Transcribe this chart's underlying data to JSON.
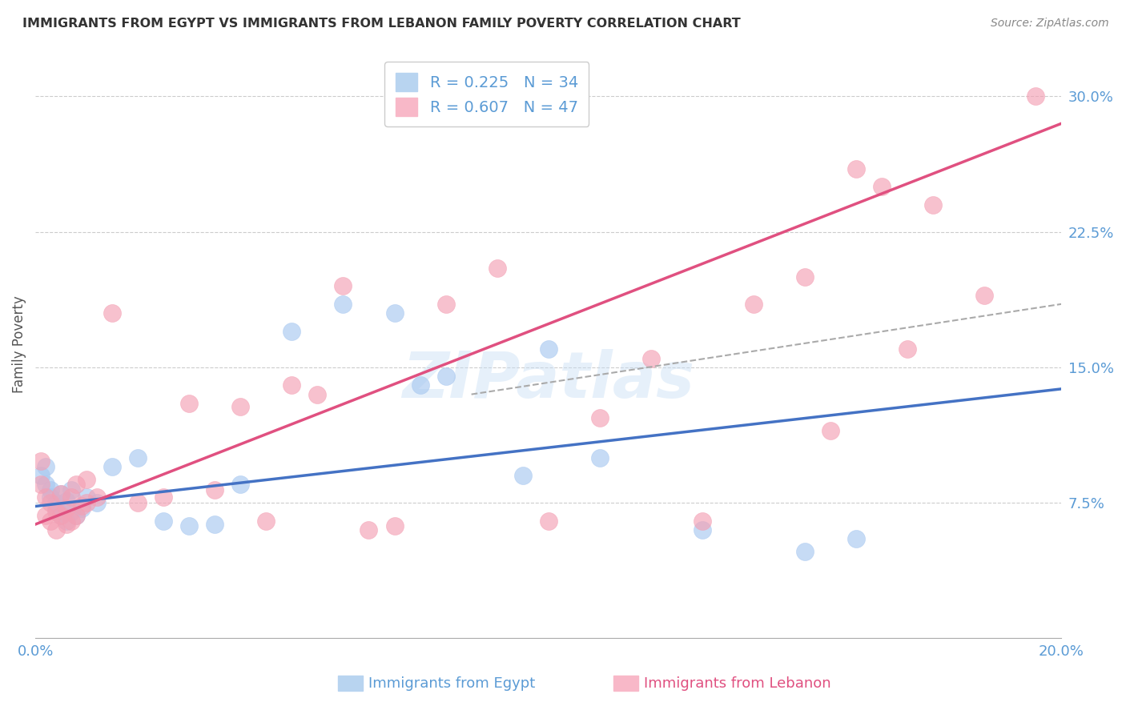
{
  "title": "IMMIGRANTS FROM EGYPT VS IMMIGRANTS FROM LEBANON FAMILY POVERTY CORRELATION CHART",
  "source": "Source: ZipAtlas.com",
  "ylabel": "Family Poverty",
  "x_label_egypt": "Immigrants from Egypt",
  "x_label_lebanon": "Immigrants from Lebanon",
  "legend_egypt_r": "R = 0.225",
  "legend_egypt_n": "N = 34",
  "legend_lebanon_r": "R = 0.607",
  "legend_lebanon_n": "N = 47",
  "watermark": "ZIPatlas",
  "xlim": [
    0.0,
    0.2
  ],
  "ylim": [
    0.0,
    0.325
  ],
  "xtick_positions": [
    0.0,
    0.05,
    0.1,
    0.15,
    0.2
  ],
  "xtick_labels": [
    "0.0%",
    "",
    "",
    "",
    "20.0%"
  ],
  "ytick_positions": [
    0.075,
    0.15,
    0.225,
    0.3
  ],
  "ytick_labels": [
    "7.5%",
    "15.0%",
    "22.5%",
    "30.0%"
  ],
  "color_egypt": "#a8c8f0",
  "color_lebanon": "#f4a0b4",
  "color_egypt_line": "#4472c4",
  "color_lebanon_line": "#e05080",
  "color_dashed": "#aaaaaa",
  "egypt_x": [
    0.001,
    0.002,
    0.002,
    0.003,
    0.003,
    0.004,
    0.004,
    0.005,
    0.005,
    0.006,
    0.006,
    0.007,
    0.007,
    0.008,
    0.009,
    0.01,
    0.012,
    0.015,
    0.02,
    0.025,
    0.03,
    0.035,
    0.04,
    0.05,
    0.06,
    0.07,
    0.075,
    0.08,
    0.095,
    0.1,
    0.11,
    0.13,
    0.15,
    0.16
  ],
  "egypt_y": [
    0.09,
    0.095,
    0.085,
    0.082,
    0.078,
    0.075,
    0.072,
    0.08,
    0.068,
    0.076,
    0.065,
    0.082,
    0.07,
    0.068,
    0.072,
    0.078,
    0.075,
    0.095,
    0.1,
    0.065,
    0.062,
    0.063,
    0.085,
    0.17,
    0.185,
    0.18,
    0.14,
    0.145,
    0.09,
    0.16,
    0.1,
    0.06,
    0.048,
    0.055
  ],
  "lebanon_x": [
    0.001,
    0.001,
    0.002,
    0.002,
    0.003,
    0.003,
    0.004,
    0.004,
    0.005,
    0.005,
    0.006,
    0.006,
    0.007,
    0.007,
    0.008,
    0.008,
    0.009,
    0.01,
    0.01,
    0.012,
    0.015,
    0.02,
    0.025,
    0.03,
    0.035,
    0.04,
    0.045,
    0.05,
    0.055,
    0.06,
    0.065,
    0.07,
    0.08,
    0.09,
    0.1,
    0.11,
    0.12,
    0.13,
    0.14,
    0.15,
    0.155,
    0.16,
    0.165,
    0.17,
    0.175,
    0.185,
    0.195
  ],
  "lebanon_y": [
    0.098,
    0.085,
    0.078,
    0.068,
    0.075,
    0.065,
    0.07,
    0.06,
    0.08,
    0.068,
    0.072,
    0.063,
    0.078,
    0.065,
    0.085,
    0.068,
    0.073,
    0.088,
    0.075,
    0.078,
    0.18,
    0.075,
    0.078,
    0.13,
    0.082,
    0.128,
    0.065,
    0.14,
    0.135,
    0.195,
    0.06,
    0.062,
    0.185,
    0.205,
    0.065,
    0.122,
    0.155,
    0.065,
    0.185,
    0.2,
    0.115,
    0.26,
    0.25,
    0.16,
    0.24,
    0.19,
    0.3
  ],
  "egypt_line_x0": 0.0,
  "egypt_line_y0": 0.073,
  "egypt_line_x1": 0.2,
  "egypt_line_y1": 0.138,
  "lebanon_line_x0": 0.0,
  "lebanon_line_y0": 0.063,
  "lebanon_line_x1": 0.2,
  "lebanon_line_y1": 0.285,
  "dashed_line_x0": 0.085,
  "dashed_line_y0": 0.135,
  "dashed_line_x1": 0.2,
  "dashed_line_y1": 0.185
}
